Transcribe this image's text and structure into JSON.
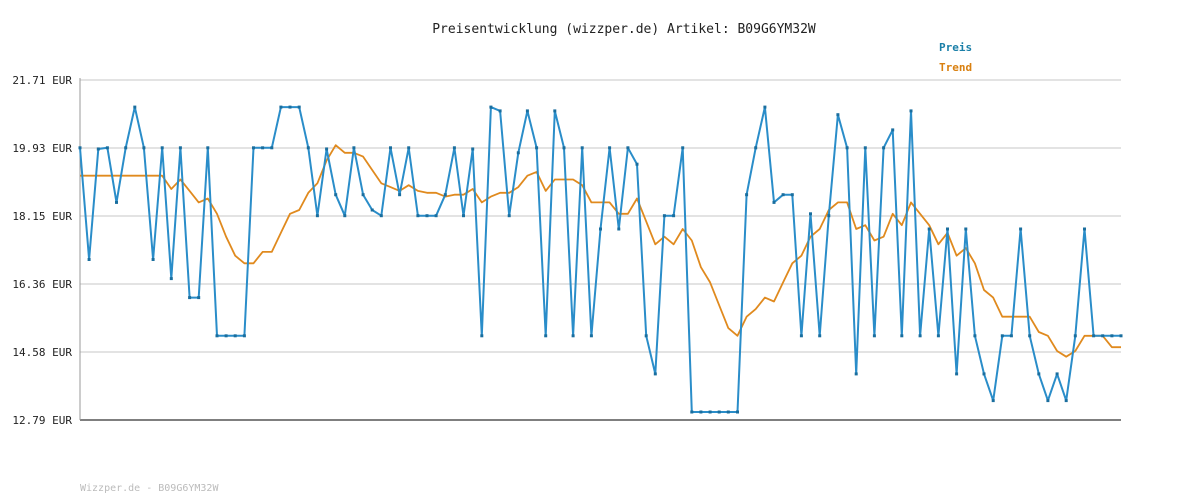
{
  "chart_data": {
    "type": "line",
    "title": "Preisentwicklung (wizzper.de) Artikel: B09G6YM32W",
    "y_unit": "EUR",
    "ylim": [
      12.79,
      21.71
    ],
    "yticks": [
      "12.79 EUR",
      "14.58 EUR",
      "16.36 EUR",
      "18.15 EUR",
      "19.93 EUR",
      "21.71 EUR"
    ],
    "grid": true,
    "legend_position": "top-right",
    "series": [
      {
        "name": "Preis",
        "color": "#2a8dc9",
        "values": [
          19.93,
          17.0,
          19.9,
          19.93,
          18.5,
          19.93,
          21.0,
          19.93,
          17.0,
          19.93,
          16.5,
          19.93,
          16.0,
          16.0,
          19.93,
          15.0,
          15.0,
          15.0,
          15.0,
          19.93,
          19.93,
          19.93,
          21.0,
          21.0,
          21.0,
          19.93,
          18.15,
          19.9,
          18.7,
          18.15,
          19.93,
          18.7,
          18.3,
          18.15,
          19.93,
          18.7,
          19.93,
          18.15,
          18.15,
          18.15,
          18.7,
          19.93,
          18.15,
          19.9,
          15.0,
          21.0,
          20.9,
          18.15,
          19.8,
          20.9,
          19.93,
          15.0,
          20.9,
          19.93,
          15.0,
          19.93,
          15.0,
          17.8,
          19.93,
          17.8,
          19.93,
          19.5,
          15.0,
          14.0,
          18.15,
          18.15,
          19.93,
          13.0,
          13.0,
          13.0,
          13.0,
          13.0,
          13.0,
          18.7,
          19.93,
          21.0,
          18.5,
          18.7,
          18.7,
          15.0,
          18.2,
          15.0,
          18.15,
          20.8,
          19.93,
          14.0,
          19.93,
          15.0,
          19.93,
          20.4,
          15.0,
          20.9,
          15.0,
          17.8,
          15.0,
          17.8,
          14.0,
          17.8,
          15.0,
          14.0,
          13.3,
          15.0,
          15.0,
          17.8,
          15.0,
          14.0,
          13.3,
          14.0,
          13.3,
          15.0,
          17.8,
          15.0,
          15.0,
          15.0,
          15.0
        ]
      },
      {
        "name": "Trend",
        "color": "#e08a1e",
        "values": [
          19.2,
          19.2,
          19.2,
          19.2,
          19.2,
          19.2,
          19.2,
          19.2,
          19.2,
          19.2,
          18.85,
          19.1,
          18.8,
          18.5,
          18.6,
          18.2,
          17.6,
          17.1,
          16.9,
          16.9,
          17.2,
          17.2,
          17.7,
          18.2,
          18.3,
          18.75,
          19.0,
          19.6,
          20.0,
          19.8,
          19.8,
          19.7,
          19.35,
          19.0,
          18.9,
          18.8,
          18.95,
          18.8,
          18.75,
          18.75,
          18.65,
          18.7,
          18.7,
          18.85,
          18.5,
          18.65,
          18.75,
          18.75,
          18.9,
          19.2,
          19.3,
          18.8,
          19.1,
          19.1,
          19.1,
          18.95,
          18.5,
          18.5,
          18.5,
          18.2,
          18.2,
          18.6,
          18.0,
          17.4,
          17.6,
          17.4,
          17.8,
          17.5,
          16.8,
          16.4,
          15.8,
          15.2,
          15.0,
          15.5,
          15.7,
          16.0,
          15.9,
          16.4,
          16.9,
          17.1,
          17.6,
          17.8,
          18.3,
          18.5,
          18.5,
          17.8,
          17.9,
          17.5,
          17.6,
          18.2,
          17.9,
          18.5,
          18.2,
          17.9,
          17.4,
          17.7,
          17.1,
          17.3,
          16.9,
          16.2,
          16.0,
          15.5,
          15.5,
          15.5,
          15.5,
          15.1,
          15.0,
          14.6,
          14.45,
          14.6,
          15.0,
          15.0,
          15.0,
          14.7,
          14.7
        ]
      }
    ],
    "footer": "Wizzper.de - B09G6YM32W"
  }
}
